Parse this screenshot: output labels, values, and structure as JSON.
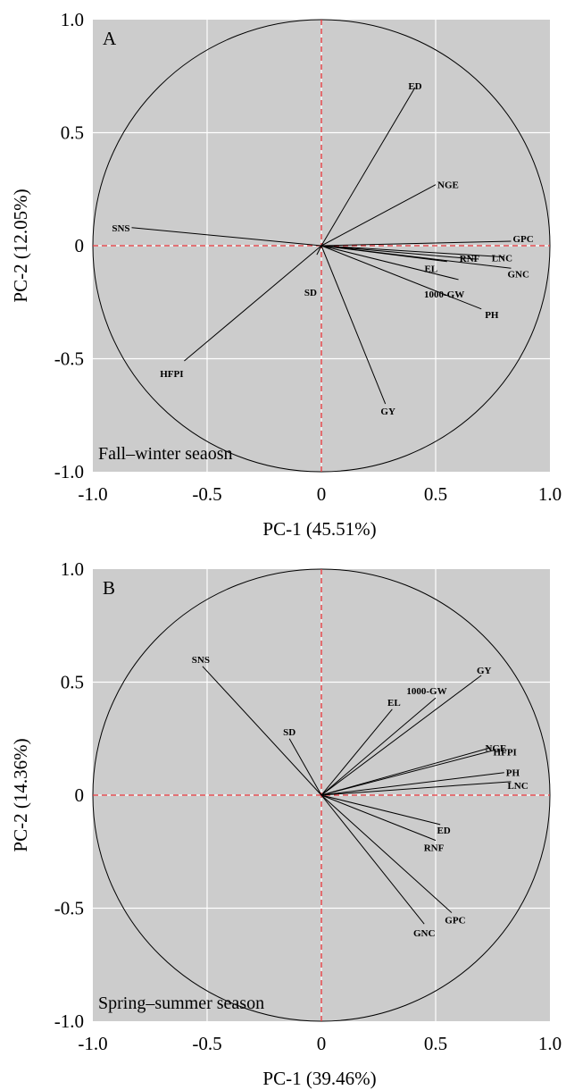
{
  "chart_data": [
    {
      "type": "scatter",
      "panel_label": "A",
      "season_text": "Fall–winter seaosn",
      "xlabel": "PC-1 (45.51%)",
      "ylabel": "PC-2 (12.05%)",
      "xlim": [
        -1.0,
        1.0
      ],
      "ylim": [
        -1.0,
        1.0
      ],
      "ticks": {
        "x": [
          "-1.0",
          "-0.5",
          "0",
          "0.5",
          "1.0"
        ],
        "y": [
          "1.0",
          "0.5",
          "0",
          "-0.5",
          "-1.0"
        ]
      },
      "grid": true,
      "correlation_circle": true,
      "background": "#cccccc",
      "vectors": [
        {
          "name": "ED",
          "x": 0.41,
          "y": 0.7
        },
        {
          "name": "NGE",
          "x": 0.5,
          "y": 0.27
        },
        {
          "name": "SNS",
          "x": -0.83,
          "y": 0.08
        },
        {
          "name": "GPC",
          "x": 0.83,
          "y": 0.02
        },
        {
          "name": "LNC",
          "x": 0.8,
          "y": -0.05
        },
        {
          "name": "RNF",
          "x": 0.68,
          "y": -0.06
        },
        {
          "name": "GNC",
          "x": 0.83,
          "y": -0.1
        },
        {
          "name": "EL",
          "x": 0.55,
          "y": -0.07
        },
        {
          "name": "1000-GW",
          "x": 0.6,
          "y": -0.15
        },
        {
          "name": "PH",
          "x": 0.7,
          "y": -0.28
        },
        {
          "name": "SD",
          "x": -0.02,
          "y": -0.04
        },
        {
          "name": "GY",
          "x": 0.28,
          "y": -0.7
        },
        {
          "name": "HFPI",
          "x": -0.6,
          "y": -0.51
        }
      ]
    },
    {
      "type": "scatter",
      "panel_label": "B",
      "season_text": "Spring–summer season",
      "xlabel": "PC-1 (39.46%)",
      "ylabel": "PC-2 (14.36%)",
      "xlim": [
        -1.0,
        1.0
      ],
      "ylim": [
        -1.0,
        1.0
      ],
      "ticks": {
        "x": [
          "-1.0",
          "-0.5",
          "0",
          "0.5",
          "1.0"
        ],
        "y": [
          "1.0",
          "0.5",
          "0",
          "-0.5",
          "-1.0"
        ]
      },
      "grid": true,
      "correlation_circle": true,
      "background": "#cccccc",
      "vectors": [
        {
          "name": "SNS",
          "x": -0.52,
          "y": 0.57
        },
        {
          "name": "SD",
          "x": -0.14,
          "y": 0.25
        },
        {
          "name": "EL",
          "x": 0.31,
          "y": 0.38
        },
        {
          "name": "1000-GW",
          "x": 0.5,
          "y": 0.43
        },
        {
          "name": "GY",
          "x": 0.7,
          "y": 0.53
        },
        {
          "name": "NGE",
          "x": 0.74,
          "y": 0.21
        },
        {
          "name": "HFPI",
          "x": 0.76,
          "y": 0.2
        },
        {
          "name": "PH",
          "x": 0.8,
          "y": 0.1
        },
        {
          "name": "LNC",
          "x": 0.83,
          "y": 0.06
        },
        {
          "name": "ED",
          "x": 0.52,
          "y": -0.13
        },
        {
          "name": "RNF",
          "x": 0.5,
          "y": -0.2
        },
        {
          "name": "GPC",
          "x": 0.57,
          "y": -0.52
        },
        {
          "name": "GNC",
          "x": 0.45,
          "y": -0.57
        }
      ]
    }
  ]
}
